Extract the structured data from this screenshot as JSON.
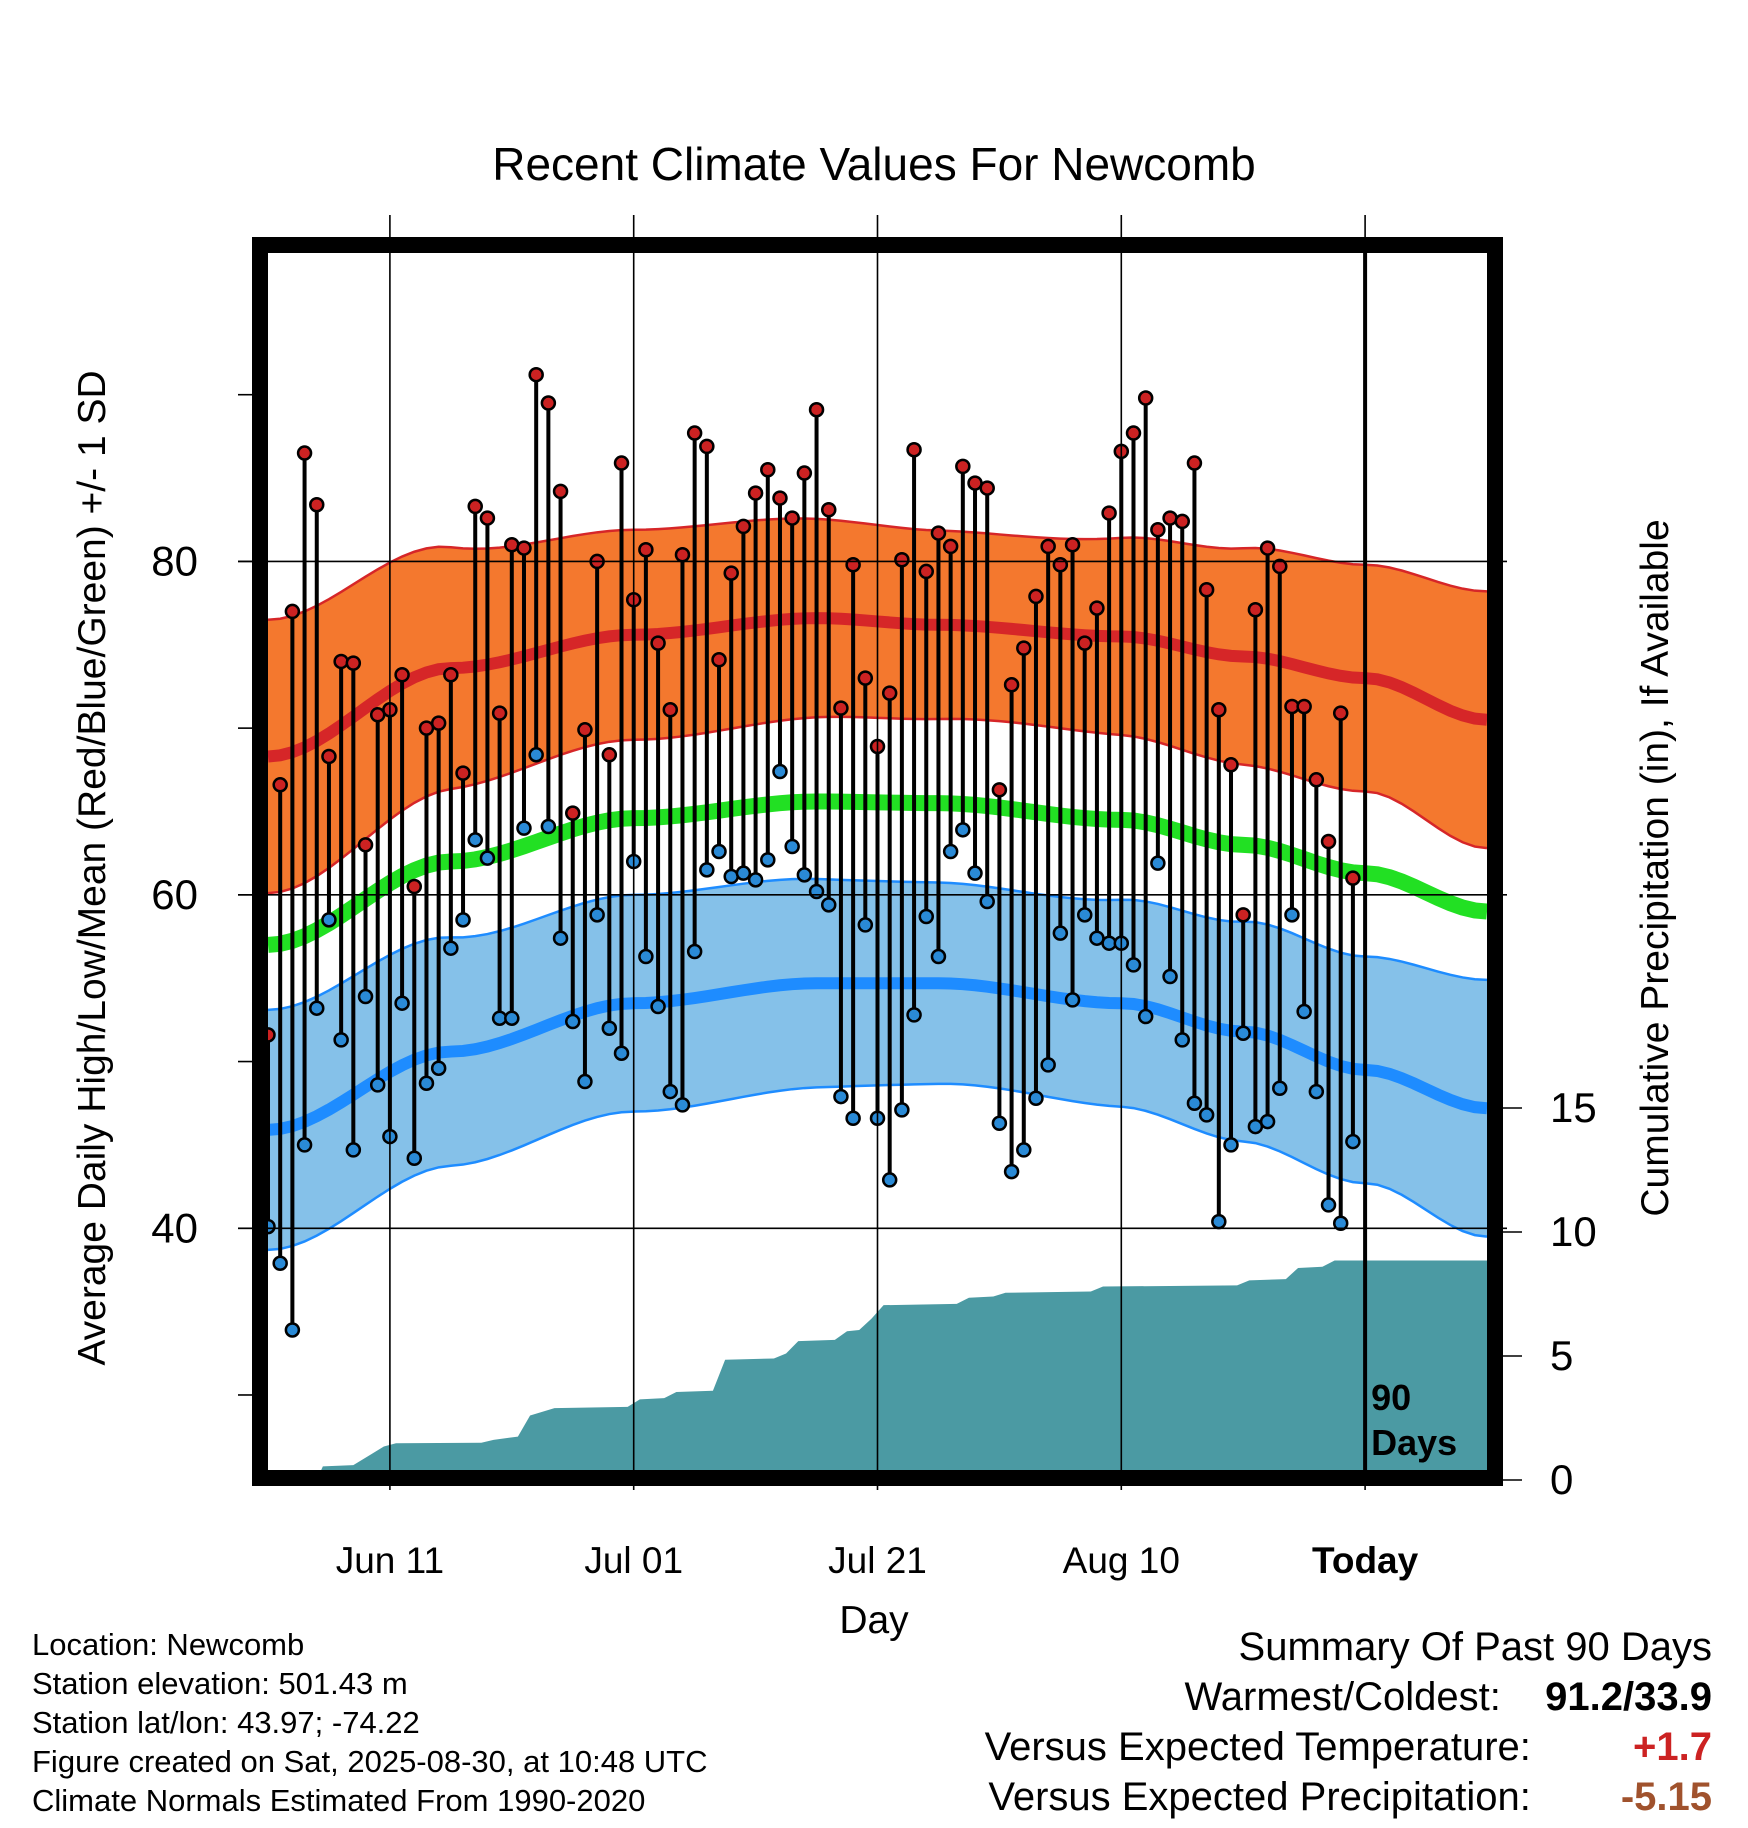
{
  "chart_data": {
    "type": "line",
    "title": "Recent Climate Values For Newcomb",
    "xlabel": "Day",
    "ylabel": "Average Daily High/Low/Mean (Red/Blue/Green) +/- 1 SD",
    "y2label": "Cumulative Precipitation (in), If Available",
    "xticks": [
      {
        "day": 10,
        "label": "Jun 11"
      },
      {
        "day": 30,
        "label": "Jul 01"
      },
      {
        "day": 50,
        "label": "Jul 21"
      },
      {
        "day": 70,
        "label": "Aug 10"
      },
      {
        "day": 90,
        "label": "Today"
      }
    ],
    "xlim": [
      0,
      100
    ],
    "ylim": [
      25.5,
      98.5
    ],
    "yticks": [
      40,
      60,
      80
    ],
    "y2lim": [
      0,
      16
    ],
    "y2ticks": [
      0,
      5,
      10,
      15
    ],
    "today_marker_label": [
      "90",
      "Days"
    ],
    "grid": true,
    "normal_high": {
      "name": "Normal High",
      "color": "#d62628",
      "band_color": "#f4782e",
      "mean": [
        [
          0,
          68.3
        ],
        [
          15,
          73.6
        ],
        [
          30,
          75.6
        ],
        [
          45,
          76.6
        ],
        [
          55,
          76.2
        ],
        [
          70,
          75.5
        ],
        [
          80,
          74.3
        ],
        [
          90,
          73.0
        ],
        [
          100,
          70.5
        ]
      ],
      "sd": [
        [
          0,
          8.2
        ],
        [
          30,
          6.3
        ],
        [
          60,
          5.6
        ],
        [
          90,
          6.8
        ],
        [
          100,
          7.7
        ]
      ]
    },
    "normal_low": {
      "name": "Normal Low",
      "color": "#1e8cff",
      "band_color": "#85c1e9",
      "mean": [
        [
          0,
          45.9
        ],
        [
          15,
          50.6
        ],
        [
          30,
          53.5
        ],
        [
          45,
          54.7
        ],
        [
          55,
          54.7
        ],
        [
          70,
          53.5
        ],
        [
          80,
          51.8
        ],
        [
          90,
          49.5
        ],
        [
          100,
          47.2
        ]
      ],
      "sd": [
        [
          0,
          7.2
        ],
        [
          30,
          6.5
        ],
        [
          60,
          6.0
        ],
        [
          90,
          6.8
        ],
        [
          100,
          7.7
        ]
      ]
    },
    "normal_mean": {
      "name": "Normal Mean",
      "color": "#22e023",
      "values": [
        [
          0,
          57.0
        ],
        [
          15,
          62.0
        ],
        [
          30,
          64.6
        ],
        [
          45,
          65.6
        ],
        [
          55,
          65.5
        ],
        [
          70,
          64.5
        ],
        [
          80,
          63.0
        ],
        [
          90,
          61.3
        ],
        [
          100,
          59.0
        ]
      ]
    },
    "daily": {
      "high_color": "#cc2222",
      "low_color": "#2a8ad6",
      "high": [
        51.6,
        66.6,
        77.0,
        86.5,
        83.4,
        68.3,
        74.0,
        73.9,
        63.0,
        70.8,
        71.1,
        73.2,
        60.5,
        70.0,
        70.3,
        73.2,
        67.3,
        83.3,
        82.6,
        70.9,
        81.0,
        80.8,
        91.2,
        89.5,
        84.2,
        64.9,
        69.9,
        80.0,
        68.4,
        85.9,
        77.7,
        80.7,
        75.1,
        71.1,
        80.4,
        87.7,
        86.9,
        74.1,
        79.3,
        82.1,
        84.1,
        85.5,
        83.8,
        82.6,
        85.3,
        89.1,
        83.1,
        71.2,
        79.8,
        73.0,
        68.9,
        72.1,
        80.1,
        86.7,
        79.4,
        81.7,
        80.9,
        85.7,
        84.7,
        84.4,
        66.3,
        72.6,
        74.8,
        77.9,
        80.9,
        79.8,
        81.0,
        75.1,
        77.2,
        82.9,
        86.6,
        87.7,
        89.8,
        81.9,
        82.6,
        82.4,
        85.9,
        78.3,
        71.1,
        67.8,
        58.8,
        77.1,
        80.8,
        79.7,
        71.3,
        71.3,
        66.9,
        63.2,
        70.9,
        61.0
      ],
      "low": [
        40.1,
        37.9,
        33.9,
        45.0,
        53.2,
        58.5,
        51.3,
        44.7,
        53.9,
        48.6,
        45.5,
        53.5,
        44.2,
        48.7,
        49.6,
        56.8,
        58.5,
        63.3,
        62.2,
        52.6,
        52.6,
        64.0,
        68.4,
        64.1,
        57.4,
        52.4,
        48.8,
        58.8,
        52.0,
        50.5,
        62.0,
        56.3,
        53.3,
        48.2,
        47.4,
        56.6,
        61.5,
        62.6,
        61.1,
        61.3,
        60.9,
        62.1,
        67.4,
        62.9,
        61.2,
        60.2,
        59.4,
        47.9,
        46.6,
        58.2,
        46.6,
        42.9,
        47.1,
        52.8,
        58.7,
        56.3,
        62.6,
        63.9,
        61.3,
        59.6,
        46.3,
        43.4,
        44.7,
        47.8,
        49.8,
        57.7,
        53.7,
        58.8,
        57.4,
        57.1,
        57.1,
        55.8,
        52.7,
        61.9,
        55.1,
        51.3,
        47.5,
        46.8,
        40.4,
        45.0,
        51.7,
        46.1,
        46.4,
        48.4,
        58.8,
        53.0,
        48.2,
        41.4,
        40.3,
        45.2
      ]
    },
    "precip_cumulative": [
      [
        0,
        0
      ],
      [
        4,
        0
      ],
      [
        4.5,
        0.55
      ],
      [
        7,
        0.6
      ],
      [
        8.5,
        1.05
      ],
      [
        9.5,
        1.35
      ],
      [
        10.5,
        1.48
      ],
      [
        17.5,
        1.5
      ],
      [
        18.5,
        1.62
      ],
      [
        20.5,
        1.75
      ],
      [
        21.5,
        2.6
      ],
      [
        23.5,
        2.9
      ],
      [
        29.5,
        2.95
      ],
      [
        30.5,
        3.25
      ],
      [
        32.5,
        3.3
      ],
      [
        33.5,
        3.55
      ],
      [
        36.5,
        3.6
      ],
      [
        37.5,
        4.85
      ],
      [
        41.5,
        4.9
      ],
      [
        42.5,
        5.1
      ],
      [
        43.5,
        5.6
      ],
      [
        46.5,
        5.65
      ],
      [
        47.5,
        6.0
      ],
      [
        48.5,
        6.05
      ],
      [
        49.5,
        6.5
      ],
      [
        50.5,
        7.05
      ],
      [
        56.5,
        7.1
      ],
      [
        57.5,
        7.35
      ],
      [
        59.5,
        7.4
      ],
      [
        60.5,
        7.55
      ],
      [
        67.5,
        7.6
      ],
      [
        68.5,
        7.8
      ],
      [
        79.5,
        7.85
      ],
      [
        80.5,
        8.05
      ],
      [
        83.5,
        8.1
      ],
      [
        84.5,
        8.55
      ],
      [
        86.5,
        8.6
      ],
      [
        87.5,
        8.85
      ],
      [
        100,
        8.85
      ]
    ],
    "precip_color": "#4b9aa3"
  },
  "metadata": [
    "Location: Newcomb",
    "Station elevation: 501.43 m",
    "Station lat/lon: 43.97; -74.22",
    "Figure created on Sat, 2025-08-30, at 10:48 UTC",
    "Climate Normals Estimated From 1990-2020"
  ],
  "summary": {
    "title": "Summary Of Past 90 Days",
    "rows": [
      {
        "label": "Warmest/Coldest:",
        "value": "91.2/33.9",
        "color": "#000000"
      },
      {
        "label": "Versus Expected Temperature:",
        "value": "+1.7",
        "color": "#cc2222"
      },
      {
        "label": "Versus Expected Precipitation:",
        "value": "-5.15",
        "color": "#a0522d"
      }
    ]
  }
}
